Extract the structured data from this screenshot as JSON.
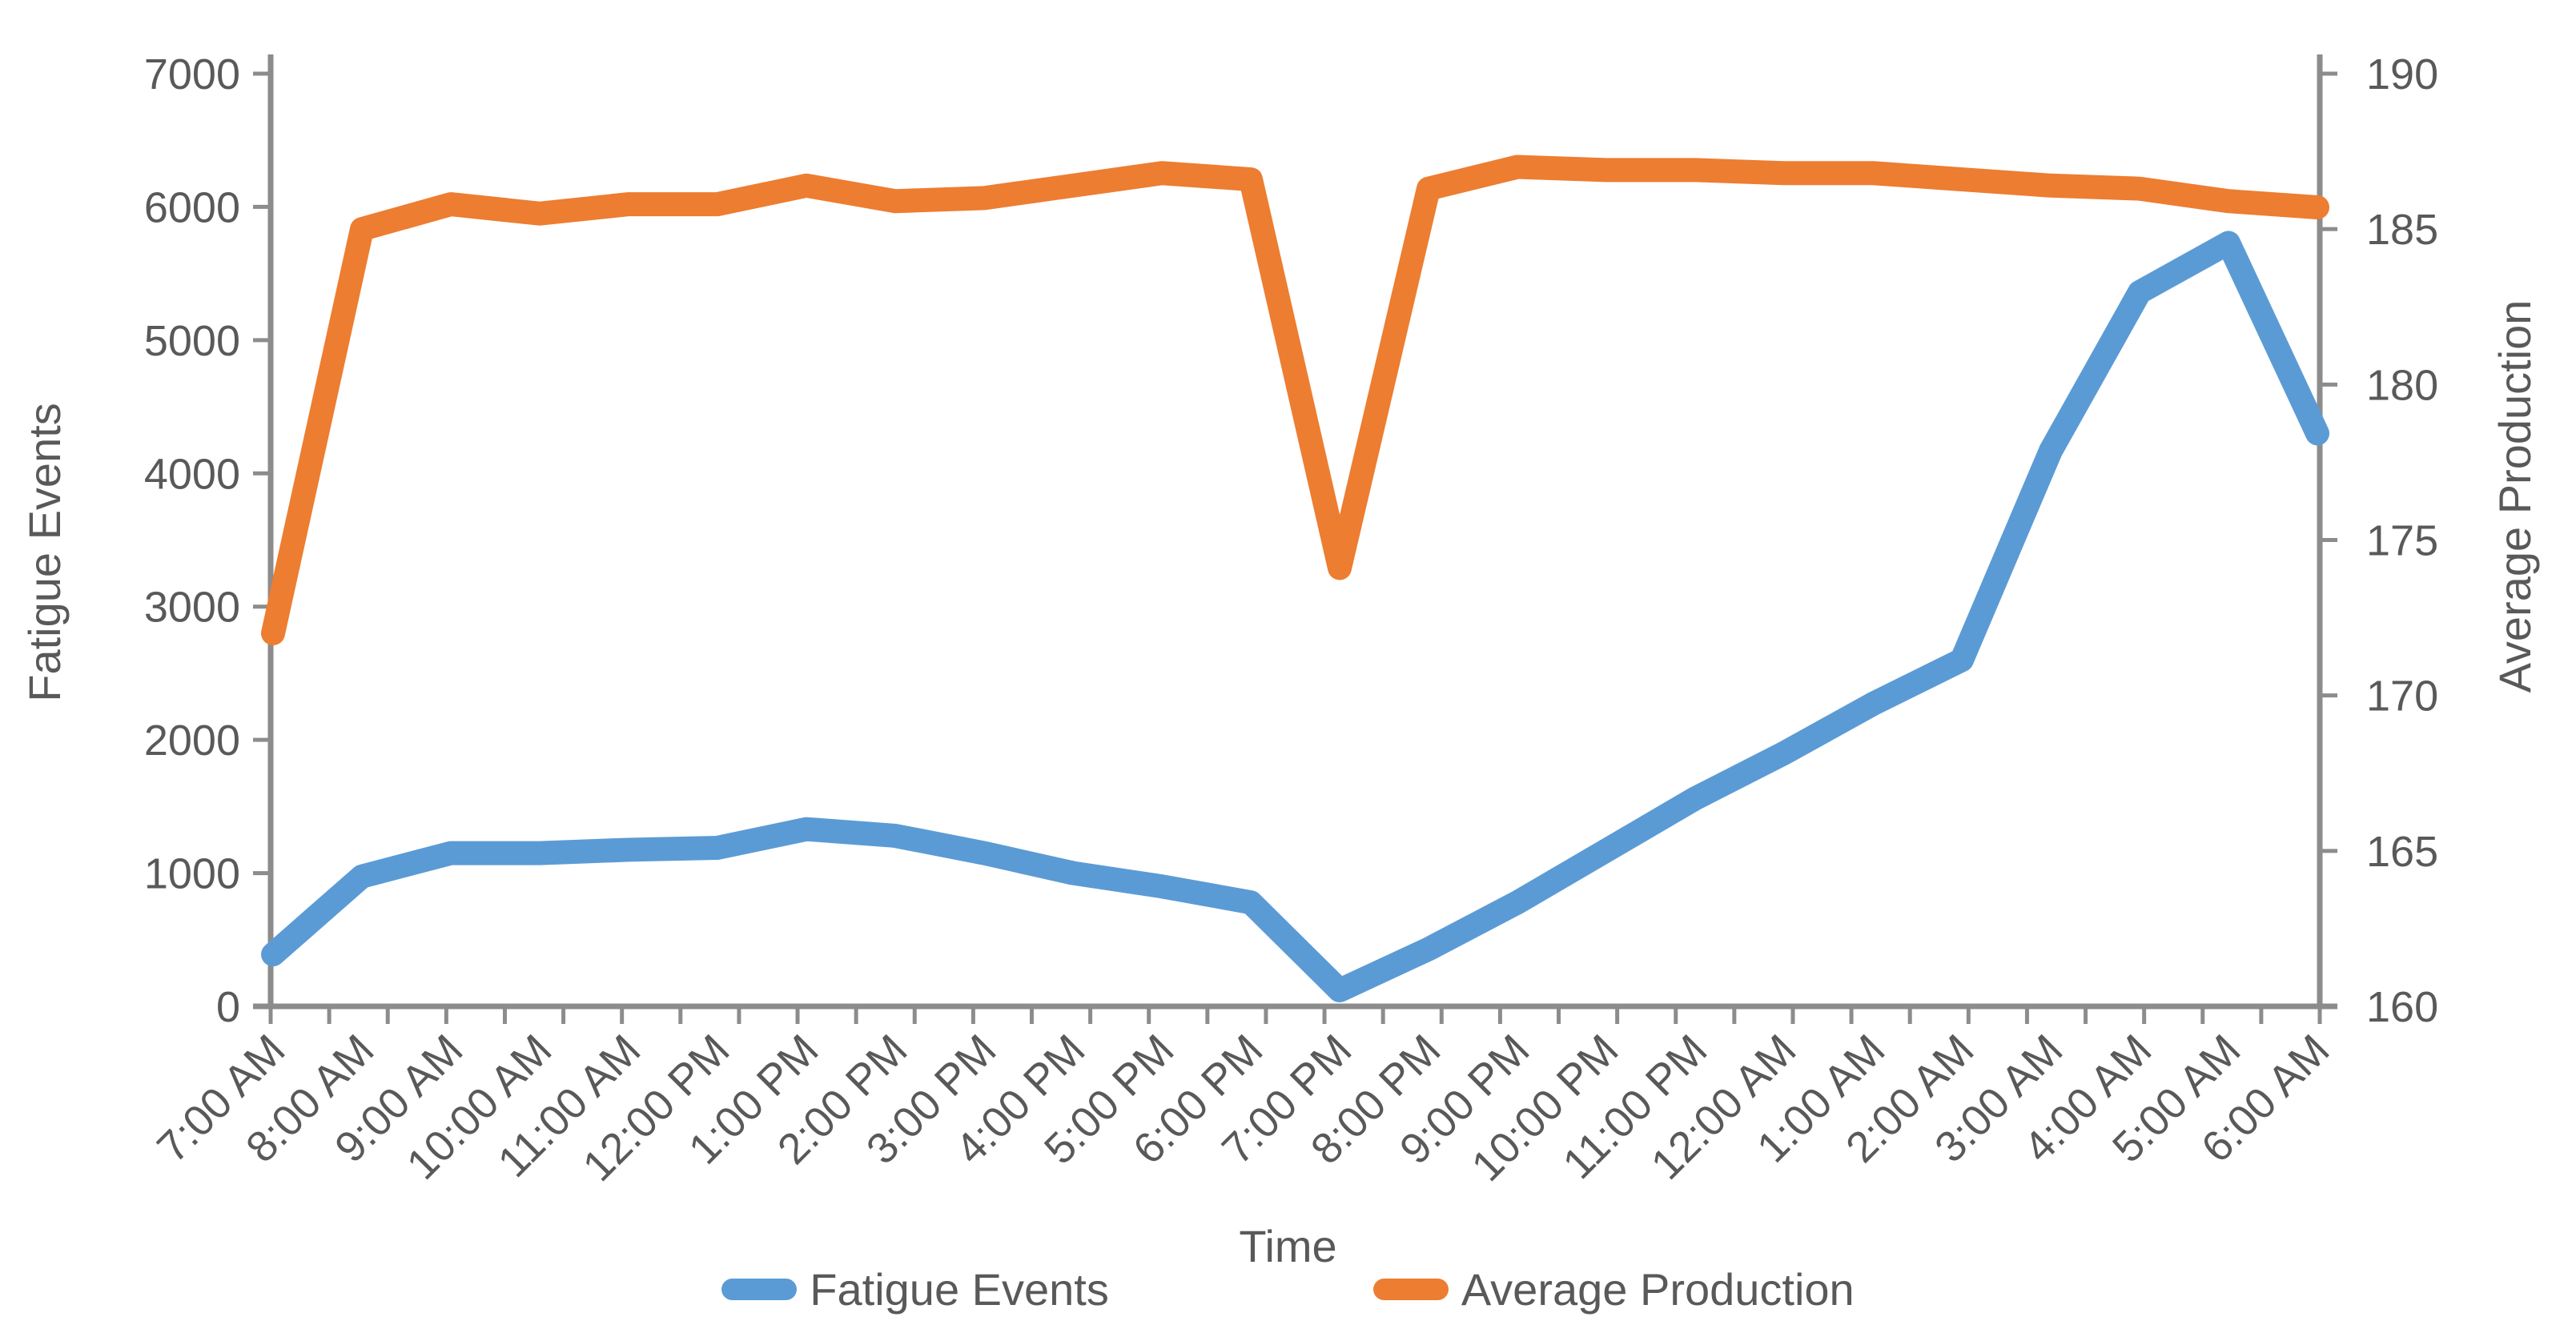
{
  "chart_data": {
    "type": "line",
    "title": "",
    "xlabel": "Time",
    "categories": [
      "7:00 AM",
      "8:00 AM",
      "9:00 AM",
      "10:00 AM",
      "11:00 AM",
      "12:00 PM",
      "1:00 PM",
      "2:00 PM",
      "3:00 PM",
      "4:00 PM",
      "5:00 PM",
      "6:00 PM",
      "7:00 PM",
      "8:00 PM",
      "9:00 PM",
      "10:00 PM",
      "11:00 PM",
      "12:00 AM",
      "1:00 AM",
      "2:00 AM",
      "3:00 AM",
      "4:00 AM",
      "5:00 AM",
      "6:00 AM"
    ],
    "axes": {
      "left": {
        "label": "Fatigue Events",
        "min": 0,
        "max": 7000,
        "step": 1000,
        "tick_labels": [
          "0",
          "1000",
          "2000",
          "3000",
          "4000",
          "5000",
          "6000",
          "7000"
        ]
      },
      "right": {
        "label": "Average Production",
        "min": 160,
        "max": 190,
        "step": 5,
        "tick_labels": [
          "160",
          "165",
          "170",
          "175",
          "180",
          "185",
          "190"
        ]
      }
    },
    "series": [
      {
        "name": "Fatigue Events",
        "axis": "left",
        "color": "#5B9BD5",
        "values": [
          390,
          975,
          1150,
          1150,
          1175,
          1190,
          1330,
          1280,
          1150,
          1000,
          900,
          780,
          120,
          430,
          780,
          1170,
          1560,
          1900,
          2270,
          2600,
          4170,
          5360,
          5730,
          4300
        ]
      },
      {
        "name": "Average Production",
        "axis": "right",
        "color": "#ED7D31",
        "values": [
          172,
          185,
          185.8,
          185.5,
          185.8,
          185.8,
          186.4,
          185.9,
          186,
          186.4,
          186.8,
          186.6,
          174.1,
          186.3,
          187,
          186.9,
          186.9,
          186.8,
          186.8,
          186.6,
          186.4,
          186.3,
          185.9,
          185.7
        ]
      }
    ],
    "legend_position": "bottom",
    "grid": false,
    "styles": {
      "axis_line_color": "#8C8C8C",
      "text_color": "#595959",
      "line_width": 30
    }
  }
}
